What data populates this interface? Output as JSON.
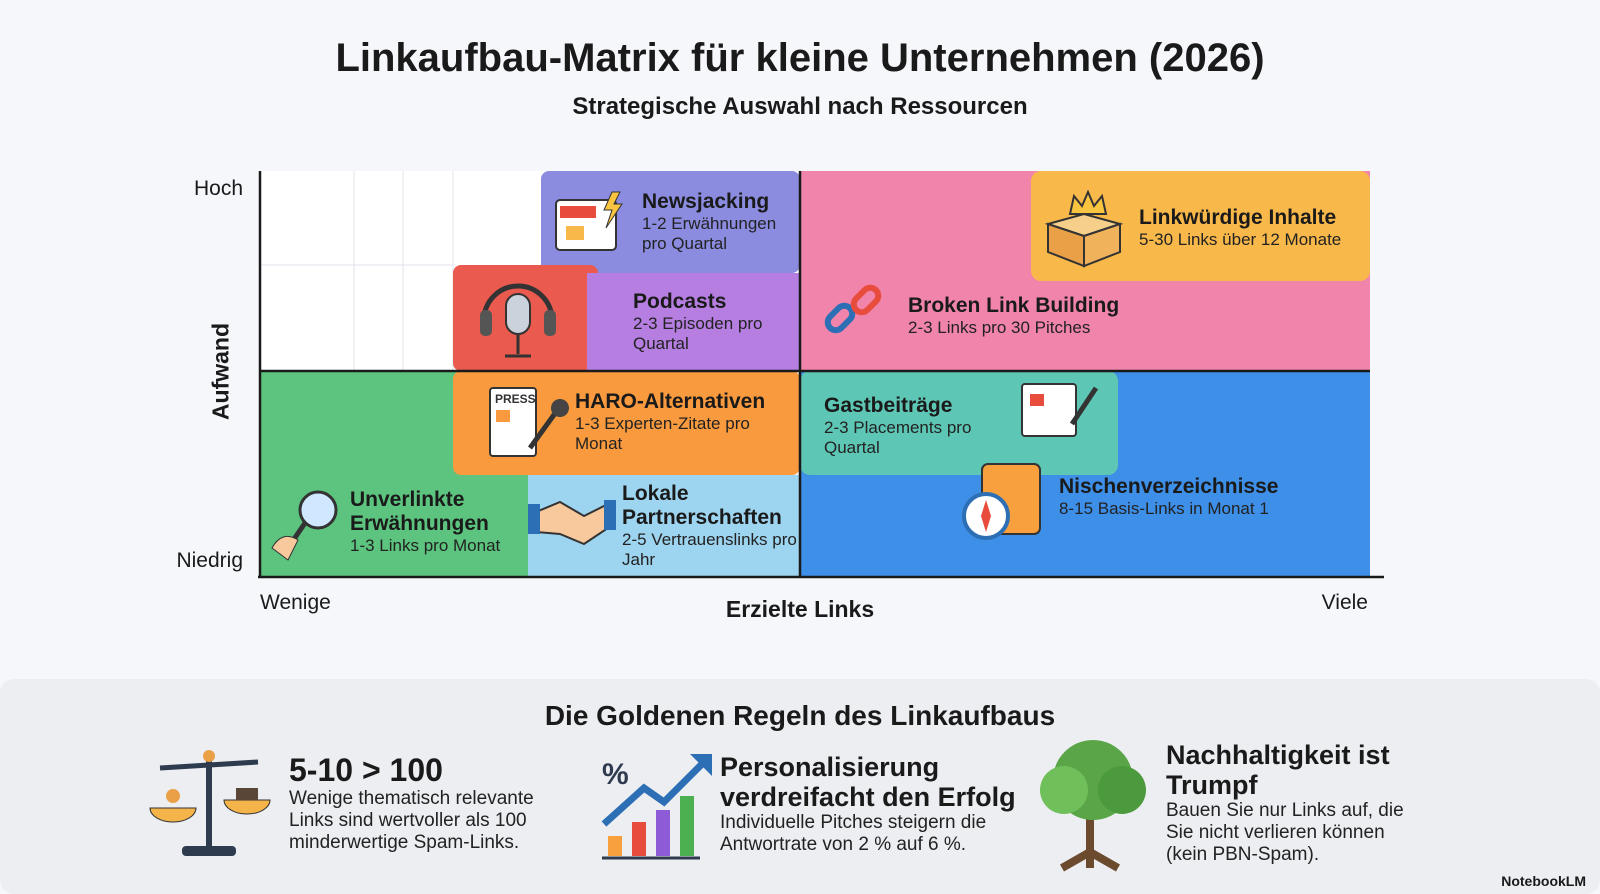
{
  "header": {
    "title": "Linkaufbau-Matrix für kleine Unternehmen (2026)",
    "subtitle": "Strategische Auswahl nach Ressourcen"
  },
  "matrix": {
    "y_axis": {
      "label": "Aufwand",
      "high": "Hoch",
      "low": "Niedrig"
    },
    "x_axis": {
      "label": "Erzielte Links",
      "low": "Wenige",
      "high": "Viele"
    },
    "cells": [
      {
        "title": "Newsjacking",
        "description": "1-2 Erwähnungen pro Quartal"
      },
      {
        "title": "Podcasts",
        "description": "2-3 Episoden pro Quartal"
      },
      {
        "title": "Linkwürdige Inhalte",
        "description": "5-30 Links über 12 Monate"
      },
      {
        "title": "Broken Link Building",
        "description": "2-3 Links pro 30 Pitches"
      },
      {
        "title": "HARO-Alternativen",
        "description": "1-3 Experten-Zitate pro Monat"
      },
      {
        "title": "Gastbeiträge",
        "description": "2-3 Placements pro Quartal"
      },
      {
        "title": "Nischenverzeichnisse",
        "description": "8-15 Basis-Links in Monat 1"
      },
      {
        "title": "Unverlinkte Erwähnungen",
        "description": "1-3 Links pro Monat"
      },
      {
        "title": "Lokale Partnerschaften",
        "description": "2-5 Vertrauenslinks pro Jahr"
      }
    ]
  },
  "rules": {
    "title": "Die Goldenen Regeln des Linkaufbaus",
    "items": [
      {
        "title": "5-10 > 100",
        "text": "Wenige thematisch relevante Links sind wertvoller als 100 minderwertige Spam-Links."
      },
      {
        "title": "Personalisierung verdreifacht den Erfolg",
        "text": "Individuelle Pitches steigern die Antwortrate von 2 % auf 6 %."
      },
      {
        "title": "Nachhaltigkeit ist Trumpf",
        "text": "Bauen Sie nur Links auf, die Sie nicht verlieren können (kein PBN-Spam)."
      }
    ]
  },
  "footer": {
    "brand": "NotebookLM"
  }
}
